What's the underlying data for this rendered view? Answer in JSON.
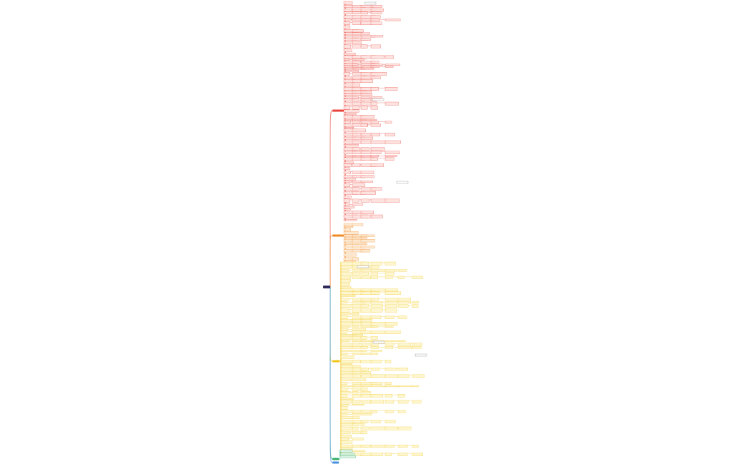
{
  "root": {
    "color": "#2e2a5a"
  },
  "branches": [
    {
      "color": "#e8413a",
      "light": "#fde3e0"
    },
    {
      "color": "#f08a24",
      "light": "#fde9d2"
    },
    {
      "color": "#f2c418",
      "light": "#fdf6cf"
    },
    {
      "color": "#2fae6a",
      "light": "#d9f2e4"
    },
    {
      "color": "#4a90e2",
      "light": "#dceafb"
    }
  ]
}
